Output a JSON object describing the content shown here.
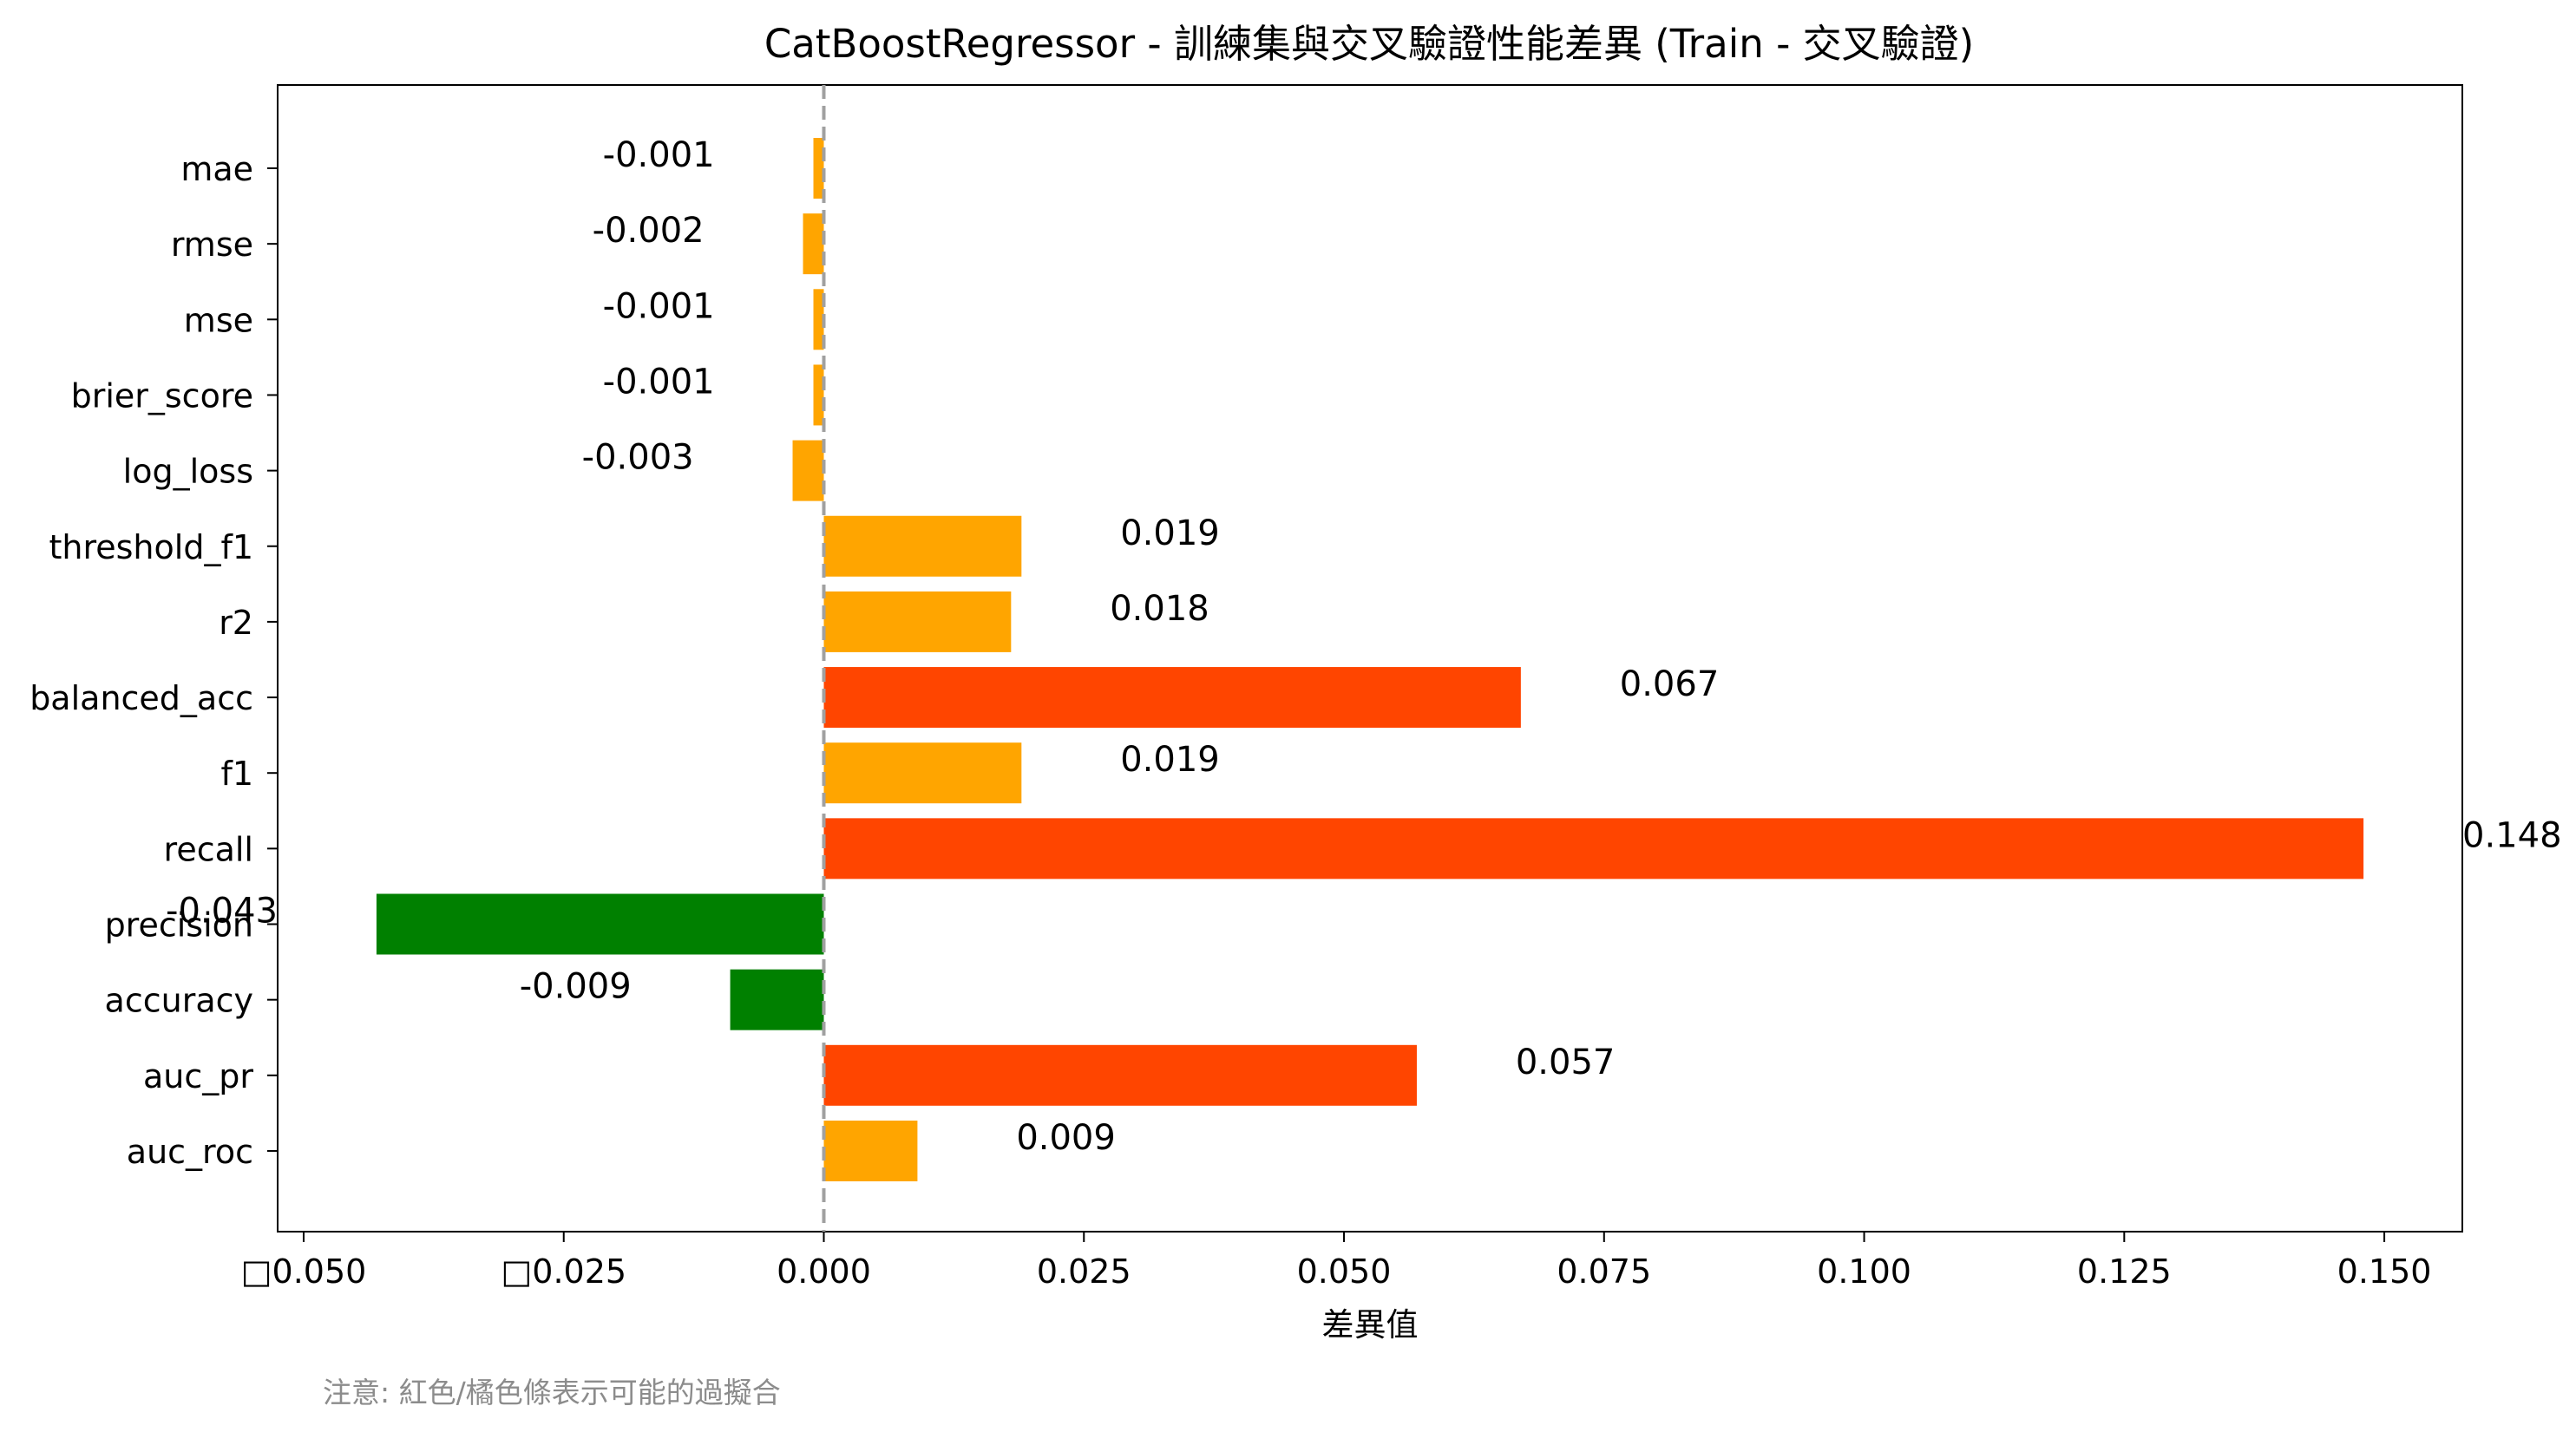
{
  "chart_data": {
    "type": "bar",
    "orientation": "horizontal",
    "title": "CatBoostRegressor - 訓練集與交叉驗證性能差異 (Train - 交叉驗證)",
    "xlabel": "差異值",
    "ylabel": "",
    "xlim": [
      -0.0525,
      0.1575
    ],
    "x_ticks": [
      -0.05,
      -0.025,
      0.0,
      0.025,
      0.05,
      0.075,
      0.1,
      0.125,
      0.15
    ],
    "x_tick_labels": [
      "□0.050",
      "□0.025",
      "0.000",
      "0.025",
      "0.050",
      "0.075",
      "0.100",
      "0.125",
      "0.150"
    ],
    "reference_line": {
      "x": 0.0,
      "style": "dashed",
      "color": "#a0a0a0"
    },
    "grid": false,
    "legend": "none",
    "categories": [
      "mae",
      "rmse",
      "mse",
      "brier_score",
      "log_loss",
      "threshold_f1",
      "r2",
      "balanced_acc",
      "f1",
      "recall",
      "precision",
      "accuracy",
      "auc_pr",
      "auc_roc"
    ],
    "values": [
      -0.001,
      -0.002,
      -0.001,
      -0.001,
      -0.003,
      0.019,
      0.018,
      0.067,
      0.019,
      0.148,
      -0.043,
      -0.009,
      0.057,
      0.009
    ],
    "value_labels": [
      "-0.001",
      "-0.002",
      "-0.001",
      "-0.001",
      "-0.003",
      "0.019",
      "0.018",
      "0.067",
      "0.019",
      "0.148",
      "-0.043",
      "-0.009",
      "0.057",
      "0.009"
    ],
    "bar_colors": [
      "#ffa500",
      "#ffa500",
      "#ffa500",
      "#ffa500",
      "#ffa500",
      "#ffa500",
      "#ffa500",
      "#ff4500",
      "#ffa500",
      "#ff4500",
      "#008000",
      "#008000",
      "#ff4500",
      "#ffa500"
    ],
    "annotation": "注意: 紅色/橘色條表示可能的過擬合"
  }
}
